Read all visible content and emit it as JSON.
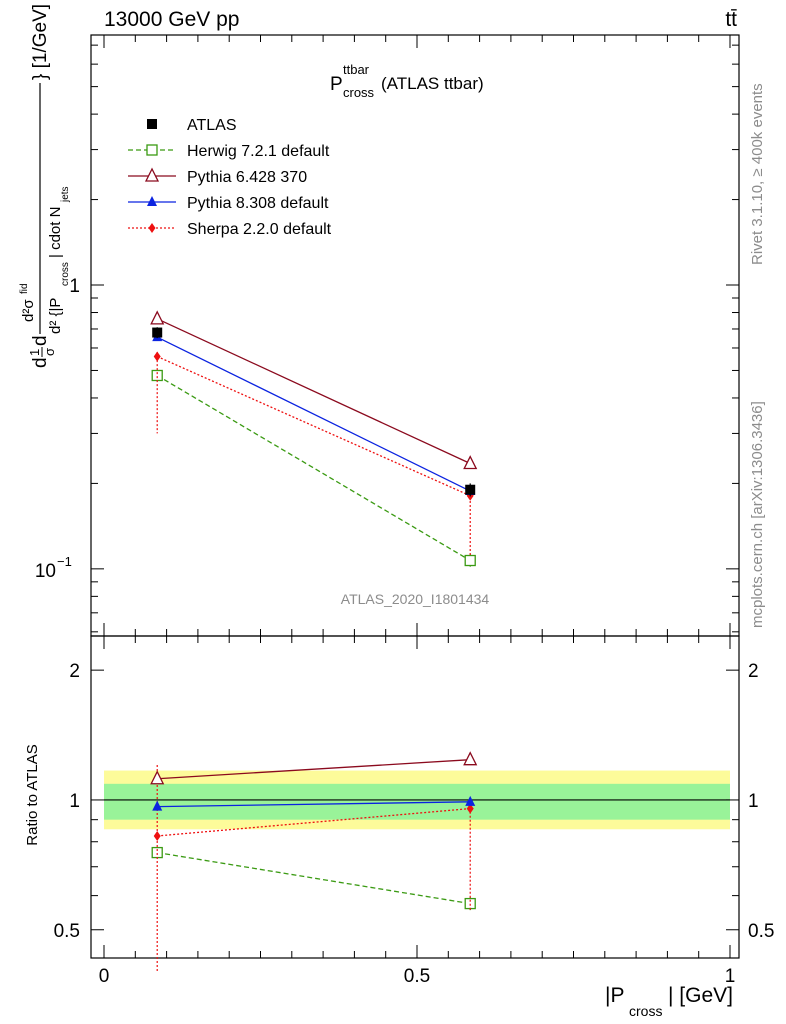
{
  "header": {
    "energy": "13000 GeV pp",
    "process": "tt̄"
  },
  "side_labels": {
    "rivet": "Rivet 3.1.10, ≥ 400k events",
    "mcplots": "mcplots.cern.ch [arXiv:1306.3436]"
  },
  "watermark": "ATLAS_2020_I1801434",
  "chart_data": [
    {
      "type": "line",
      "panel": "main",
      "title": {
        "main": "P",
        "sup": "ttbar",
        "sub": "cross",
        "rest": " (ATLAS ttbar)"
      },
      "ylabel": "d1/σ dσ/d{|P_cross| cdot N_jets} [1/GeV]",
      "yscale": "log",
      "ylim": [
        0.058,
        7.6
      ],
      "xlim": [
        0,
        1
      ],
      "ytick_labels": {
        "one": "1",
        "tenth_base": "10",
        "tenth_exp": "−1"
      },
      "x": [
        0.085,
        0.585
      ],
      "series": [
        {
          "name": "ATLAS",
          "key": "atlas",
          "values": [
            0.68,
            0.19
          ],
          "err_lo": [
            0.03,
            0.01
          ],
          "err_hi": [
            0.03,
            0.01
          ]
        },
        {
          "name": "Herwig 7.2.1 default",
          "key": "herwig",
          "values": [
            0.48,
            0.107
          ],
          "err_lo": [
            0.02,
            0.006
          ],
          "err_hi": [
            0.02,
            0.006
          ]
        },
        {
          "name": "Pythia 6.428 370",
          "key": "py6",
          "values": [
            0.76,
            0.235
          ],
          "err_lo": [
            0.01,
            0.005
          ],
          "err_hi": [
            0.01,
            0.005
          ]
        },
        {
          "name": "Pythia 8.308 default",
          "key": "py8",
          "values": [
            0.655,
            0.188
          ],
          "err_lo": [
            0.01,
            0.004
          ],
          "err_hi": [
            0.01,
            0.004
          ]
        },
        {
          "name": "Sherpa 2.2.0 default",
          "key": "sherpa",
          "values": [
            0.56,
            0.181
          ],
          "err_lo": [
            0.26,
            0.07
          ],
          "err_hi": [
            0.02,
            0.004
          ]
        }
      ]
    },
    {
      "type": "line",
      "panel": "ratio",
      "ylabel": "Ratio to ATLAS",
      "xlabel": {
        "pre": "|P",
        "sub": "cross",
        "post": "| [GeV]"
      },
      "yscale": "log",
      "ylim": [
        0.43,
        2.4
      ],
      "xlim": [
        0,
        1
      ],
      "yticks": [
        0.5,
        1,
        2
      ],
      "ytick_labels": [
        "0.5",
        "1",
        "2"
      ],
      "xticks": [
        0,
        0.5,
        1
      ],
      "xtick_labels": [
        "0",
        "0.5",
        "1"
      ],
      "band_inner": [
        0.9,
        1.09
      ],
      "band_outer": [
        0.855,
        1.17
      ],
      "x": [
        0.085,
        0.585
      ],
      "series": [
        {
          "name": "Herwig 7.2.1 default",
          "key": "herwig",
          "values": [
            0.755,
            0.575
          ],
          "err_lo": [
            0.015,
            0.02
          ],
          "err_hi": [
            0.015,
            0.02
          ]
        },
        {
          "name": "Pythia 6.428 370",
          "key": "py6",
          "values": [
            1.12,
            1.24
          ],
          "err_lo": [
            0.015,
            0.015
          ],
          "err_hi": [
            0.015,
            0.015
          ]
        },
        {
          "name": "Pythia 8.308 default",
          "key": "py8",
          "values": [
            0.965,
            0.99
          ],
          "err_lo": [
            0.01,
            0.01
          ],
          "err_hi": [
            0.01,
            0.01
          ]
        },
        {
          "name": "Sherpa 2.2.0 default",
          "key": "sherpa",
          "values": [
            0.825,
            0.955
          ],
          "err_lo": [
            0.425,
            0.4
          ],
          "err_hi": [
            0.38,
            0.025
          ]
        }
      ]
    }
  ],
  "styles": {
    "atlas": {
      "color": "#000000",
      "marker": "square-filled",
      "dash": ""
    },
    "herwig": {
      "color": "#3a9a12",
      "marker": "square-open",
      "dash": "5,3"
    },
    "py6": {
      "color": "#8b0a1e",
      "marker": "triangle-open",
      "dash": ""
    },
    "py8": {
      "color": "#0b23e0",
      "marker": "triangle-filled",
      "dash": ""
    },
    "sherpa": {
      "color": "#ee1010",
      "marker": "diamond-filled",
      "dash": "2,2"
    },
    "band_inner_color": "#99f399",
    "band_outer_color": "#fdfb9a"
  }
}
